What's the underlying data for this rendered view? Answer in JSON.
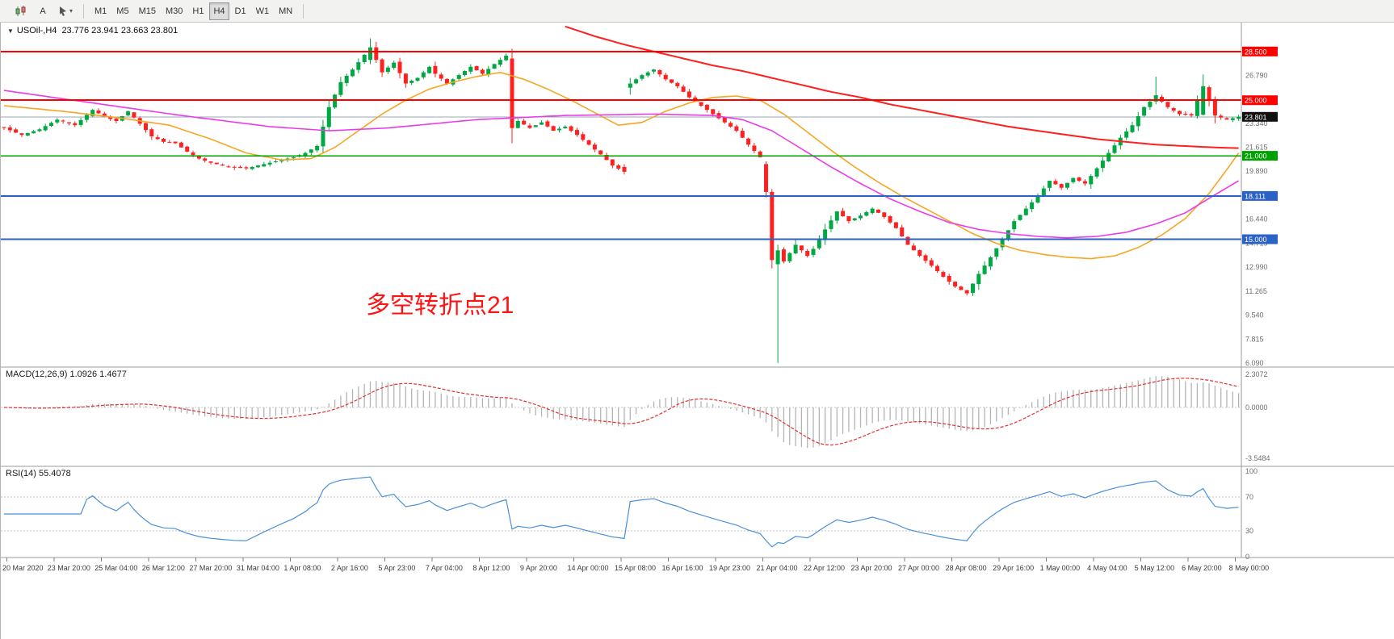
{
  "toolbar": {
    "text_tool_label": "A",
    "timeframes": [
      "M1",
      "M5",
      "M15",
      "M30",
      "H1",
      "H4",
      "D1",
      "W1",
      "MN"
    ],
    "active_timeframe": "H4",
    "icons": [
      "candlestick-chart-icon",
      "text-tool-icon",
      "cursor-tool-icon",
      "chevron-down-icon"
    ]
  },
  "chart_header": {
    "symbol": "USOil-,H4",
    "ohlc": "23.776 23.941 23.663 23.801"
  },
  "macd_header": {
    "label": "MACD(12,26,9)",
    "values": "1.0926 1.4677"
  },
  "rsi_header": {
    "label": "RSI(14)",
    "values": "55.4078"
  },
  "annotation": {
    "text": "多空转折点21",
    "color": "#ff1212"
  },
  "chart_data": {
    "type": "candlestick",
    "symbol": "USOil",
    "timeframe": "H4",
    "bars": 210,
    "ylim": [
      6.09,
      30.0
    ],
    "colors": {
      "up": "#00a843",
      "down": "#ff2020",
      "ma_orange": "#f5a623",
      "ma_magenta": "#e93ce9",
      "ma_red": "#ff1f1f",
      "rsi": "#4a90d9",
      "macd_signal": "#e03030"
    },
    "current_price": 23.801,
    "current_price_label": "23.801",
    "levels": [
      {
        "value": 28.5,
        "label": "28.500",
        "color": "#ff0000",
        "width": 2
      },
      {
        "value": 25.0,
        "label": "25.000",
        "color": "#ff0000",
        "width": 2
      },
      {
        "value": 21.0,
        "label": "21.000",
        "color": "#00a000",
        "width": 1.6
      },
      {
        "value": 18.111,
        "label": "18.111",
        "color": "#2b62c6",
        "width": 2
      },
      {
        "value": 15.0,
        "label": "15.000",
        "color": "#2b62c6",
        "width": 2
      }
    ],
    "price_axis": {
      "labels": [
        "26.790",
        "25.065",
        "23.340",
        "21.615",
        "19.890",
        "18.165",
        "16.440",
        "14.715",
        "12.990",
        "11.265",
        "9.540",
        "7.815",
        "6.090"
      ]
    },
    "close_anchors": [
      [
        0,
        23.0
      ],
      [
        3,
        22.5
      ],
      [
        6,
        22.9
      ],
      [
        9,
        23.6
      ],
      [
        12,
        23.2
      ],
      [
        15,
        24.3
      ],
      [
        17,
        23.8
      ],
      [
        19,
        23.5
      ],
      [
        21,
        24.2
      ],
      [
        23,
        23.3
      ],
      [
        25,
        22.4
      ],
      [
        27,
        22.0
      ],
      [
        29,
        21.9
      ],
      [
        31,
        21.3
      ],
      [
        33,
        20.8
      ],
      [
        35,
        20.5
      ],
      [
        37,
        20.3
      ],
      [
        39,
        20.15
      ],
      [
        41,
        20.1
      ],
      [
        43,
        20.3
      ],
      [
        45,
        20.5
      ],
      [
        47,
        20.7
      ],
      [
        49,
        20.9
      ],
      [
        51,
        21.2
      ],
      [
        53,
        21.7
      ],
      [
        55,
        24.5
      ],
      [
        57,
        26.3
      ],
      [
        59,
        27.2
      ],
      [
        62,
        28.8
      ],
      [
        64,
        27.0
      ],
      [
        66,
        27.7
      ],
      [
        68,
        26.2
      ],
      [
        70,
        26.6
      ],
      [
        72,
        27.4
      ],
      [
        73,
        26.9
      ],
      [
        75,
        26.2
      ],
      [
        77,
        26.8
      ],
      [
        79,
        27.4
      ],
      [
        81,
        26.9
      ],
      [
        83,
        27.6
      ],
      [
        85,
        28.2
      ],
      [
        86,
        23.0
      ],
      [
        87,
        23.5
      ],
      [
        89,
        23.0
      ],
      [
        91,
        23.4
      ],
      [
        93,
        22.8
      ],
      [
        95,
        23.1
      ],
      [
        97,
        22.5
      ],
      [
        99,
        21.8
      ],
      [
        101,
        21.1
      ],
      [
        103,
        20.3
      ],
      [
        105,
        19.85
      ],
      [
        106,
        26.2
      ],
      [
        108,
        26.8
      ],
      [
        110,
        27.2
      ],
      [
        112,
        26.5
      ],
      [
        114,
        26.0
      ],
      [
        116,
        25.2
      ],
      [
        118,
        24.6
      ],
      [
        120,
        24.0
      ],
      [
        122,
        23.4
      ],
      [
        124,
        22.8
      ],
      [
        126,
        21.8
      ],
      [
        128,
        20.9
      ],
      [
        129,
        18.4
      ],
      [
        130,
        13.5
      ],
      [
        131,
        14.2
      ],
      [
        132,
        13.4
      ],
      [
        134,
        14.6
      ],
      [
        136,
        13.8
      ],
      [
        137,
        14.3
      ],
      [
        139,
        15.7
      ],
      [
        141,
        17.0
      ],
      [
        143,
        16.3
      ],
      [
        145,
        16.7
      ],
      [
        147,
        17.2
      ],
      [
        149,
        16.6
      ],
      [
        151,
        15.8
      ],
      [
        153,
        14.6
      ],
      [
        155,
        13.8
      ],
      [
        157,
        13.1
      ],
      [
        159,
        12.3
      ],
      [
        161,
        11.6
      ],
      [
        163,
        11.1
      ],
      [
        165,
        12.5
      ],
      [
        167,
        13.7
      ],
      [
        169,
        15.0
      ],
      [
        171,
        16.3
      ],
      [
        173,
        17.2
      ],
      [
        175,
        18.1
      ],
      [
        177,
        19.2
      ],
      [
        179,
        18.7
      ],
      [
        181,
        19.4
      ],
      [
        183,
        19.0
      ],
      [
        185,
        20.1
      ],
      [
        187,
        21.2
      ],
      [
        189,
        22.3
      ],
      [
        191,
        23.2
      ],
      [
        193,
        24.5
      ],
      [
        195,
        25.3
      ],
      [
        197,
        24.5
      ],
      [
        199,
        24.0
      ],
      [
        201,
        23.9
      ],
      [
        203,
        26.0
      ],
      [
        205,
        23.9
      ],
      [
        207,
        23.6
      ],
      [
        209,
        23.801
      ]
    ],
    "special_bars": {
      "62": [
        27.9,
        29.45,
        27.6,
        28.8
      ],
      "86": [
        28.0,
        28.7,
        21.9,
        23.0
      ],
      "105": [
        20.2,
        20.4,
        19.65,
        19.85
      ],
      "106": [
        25.9,
        26.6,
        25.4,
        26.2
      ],
      "129": [
        20.4,
        20.6,
        18.0,
        18.4
      ],
      "130": [
        18.4,
        18.6,
        12.9,
        13.5
      ],
      "131": [
        13.2,
        14.6,
        6.1,
        14.2
      ],
      "195": [
        24.9,
        26.7,
        24.7,
        25.35
      ],
      "203": [
        23.95,
        26.85,
        23.9,
        26.0
      ],
      "209": [
        23.65,
        23.95,
        23.5,
        23.801
      ]
    },
    "ma_lines": [
      {
        "name": "ma-orange-line",
        "color": "#f5a623",
        "width": 1.6,
        "anchors": [
          [
            0,
            24.6
          ],
          [
            10,
            24.2
          ],
          [
            20,
            23.7
          ],
          [
            28,
            23.2
          ],
          [
            35,
            22.2
          ],
          [
            41,
            21.2
          ],
          [
            47,
            20.7
          ],
          [
            52,
            20.8
          ],
          [
            56,
            21.6
          ],
          [
            60,
            22.8
          ],
          [
            64,
            24.0
          ],
          [
            68,
            25.0
          ],
          [
            72,
            25.8
          ],
          [
            76,
            26.3
          ],
          [
            80,
            26.7
          ],
          [
            84,
            27.0
          ],
          [
            88,
            26.5
          ],
          [
            92,
            25.8
          ],
          [
            96,
            25.0
          ],
          [
            100,
            24.1
          ],
          [
            104,
            23.2
          ],
          [
            108,
            23.4
          ],
          [
            112,
            24.2
          ],
          [
            116,
            24.8
          ],
          [
            120,
            25.2
          ],
          [
            124,
            25.3
          ],
          [
            128,
            25.0
          ],
          [
            132,
            24.0
          ],
          [
            136,
            22.7
          ],
          [
            140,
            21.4
          ],
          [
            144,
            20.2
          ],
          [
            148,
            19.1
          ],
          [
            152,
            18.1
          ],
          [
            156,
            17.2
          ],
          [
            160,
            16.3
          ],
          [
            164,
            15.4
          ],
          [
            168,
            14.7
          ],
          [
            172,
            14.2
          ],
          [
            176,
            13.9
          ],
          [
            180,
            13.7
          ],
          [
            184,
            13.6
          ],
          [
            188,
            13.8
          ],
          [
            192,
            14.4
          ],
          [
            196,
            15.3
          ],
          [
            200,
            16.5
          ],
          [
            204,
            18.3
          ],
          [
            207,
            20.0
          ],
          [
            209,
            21.2
          ]
        ]
      },
      {
        "name": "ma-magenta-line",
        "color": "#e93ce9",
        "width": 1.6,
        "anchors": [
          [
            0,
            25.7
          ],
          [
            15,
            24.8
          ],
          [
            30,
            23.9
          ],
          [
            45,
            23.1
          ],
          [
            55,
            22.8
          ],
          [
            65,
            23.0
          ],
          [
            80,
            23.6
          ],
          [
            95,
            23.9
          ],
          [
            110,
            24.0
          ],
          [
            120,
            23.9
          ],
          [
            125,
            23.6
          ],
          [
            130,
            22.8
          ],
          [
            135,
            21.5
          ],
          [
            140,
            20.2
          ],
          [
            145,
            19.0
          ],
          [
            150,
            17.9
          ],
          [
            155,
            17.0
          ],
          [
            160,
            16.2
          ],
          [
            165,
            15.7
          ],
          [
            170,
            15.4
          ],
          [
            175,
            15.2
          ],
          [
            180,
            15.1
          ],
          [
            185,
            15.2
          ],
          [
            190,
            15.5
          ],
          [
            195,
            16.1
          ],
          [
            200,
            16.9
          ],
          [
            205,
            18.2
          ],
          [
            209,
            19.2
          ]
        ]
      },
      {
        "name": "ma-red-line",
        "color": "#ff1f1f",
        "width": 2,
        "anchors": [
          [
            95,
            30.3
          ],
          [
            100,
            29.6
          ],
          [
            105,
            29.0
          ],
          [
            110,
            28.5
          ],
          [
            115,
            28.0
          ],
          [
            120,
            27.5
          ],
          [
            125,
            27.1
          ],
          [
            130,
            26.6
          ],
          [
            135,
            26.1
          ],
          [
            140,
            25.6
          ],
          [
            145,
            25.2
          ],
          [
            150,
            24.7
          ],
          [
            155,
            24.3
          ],
          [
            160,
            23.9
          ],
          [
            165,
            23.5
          ],
          [
            170,
            23.1
          ],
          [
            175,
            22.8
          ],
          [
            180,
            22.5
          ],
          [
            185,
            22.2
          ],
          [
            190,
            22.0
          ],
          [
            195,
            21.8
          ],
          [
            200,
            21.7
          ],
          [
            205,
            21.6
          ],
          [
            209,
            21.55
          ]
        ]
      }
    ],
    "macd": {
      "fast": 12,
      "slow": 26,
      "signal": 9,
      "range": [
        -3.5484,
        2.3072
      ],
      "axis_labels": [
        "2.3072",
        "0.0000",
        "-3.5484"
      ]
    },
    "rsi": {
      "period": 14,
      "levels": [
        70,
        30
      ],
      "range": [
        0,
        100
      ],
      "axis_labels": [
        "100",
        "70",
        "30",
        "0"
      ]
    },
    "x_labels": [
      "20 Mar 2020",
      "23 Mar 20:00",
      "25 Mar 04:00",
      "26 Mar 12:00",
      "27 Mar 20:00",
      "31 Mar 04:00",
      "1 Apr 08:00",
      "2 Apr 16:00",
      "5 Apr 23:00",
      "7 Apr 04:00",
      "8 Apr 12:00",
      "9 Apr 20:00",
      "14 Apr 00:00",
      "15 Apr 08:00",
      "16 Apr 16:00",
      "19 Apr 23:00",
      "21 Apr 04:00",
      "22 Apr 12:00",
      "23 Apr 20:00",
      "27 Apr 00:00",
      "28 Apr 08:00",
      "29 Apr 16:00",
      "1 May 00:00",
      "4 May 04:00",
      "5 May 12:00",
      "6 May 20:00",
      "8 May 00:00"
    ]
  }
}
